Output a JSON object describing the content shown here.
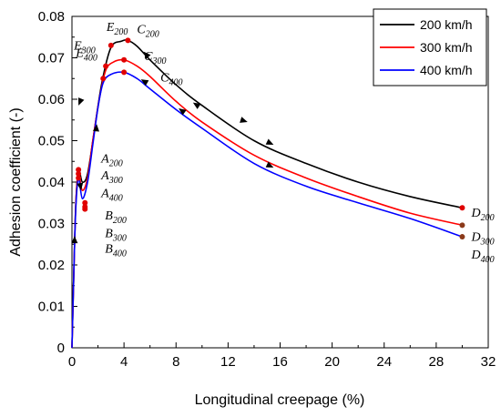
{
  "chart_data": {
    "type": "line",
    "xlabel": "Longitudinal creepage (%)",
    "ylabel": "Adhesion coefficient (-)",
    "xlim": [
      0,
      32
    ],
    "ylim": [
      0,
      0.08
    ],
    "x_ticks": [
      "0",
      "4",
      "8",
      "12",
      "16",
      "20",
      "24",
      "28",
      "32"
    ],
    "y_ticks": [
      "0",
      "0.01",
      "0.02",
      "0.03",
      "0.04",
      "0.05",
      "0.06",
      "0.07",
      "0.08"
    ],
    "legend_position": "top-right",
    "series": [
      {
        "name": "200 km/h",
        "color": "#000000",
        "x": [
          0,
          0.15,
          0.3,
          0.5,
          0.8,
          1.2,
          1.7,
          2.3,
          3.0,
          3.8,
          4.3,
          5.0,
          6.0,
          8.0,
          10.0,
          14.0,
          18.0,
          22.0,
          26.0,
          30.0
        ],
        "y": [
          0,
          0.019,
          0.035,
          0.043,
          0.04,
          0.042,
          0.052,
          0.064,
          0.0725,
          0.074,
          0.0742,
          0.0728,
          0.0695,
          0.0635,
          0.0585,
          0.05,
          0.0445,
          0.04,
          0.0365,
          0.0338
        ]
      },
      {
        "name": "300 km/h",
        "color": "#ff0000",
        "x": [
          0,
          0.15,
          0.3,
          0.5,
          0.8,
          1.2,
          1.6,
          2.1,
          2.6,
          3.2,
          4.0,
          5.0,
          6.0,
          8.0,
          10.0,
          14.0,
          18.0,
          22.0,
          26.0,
          30.0
        ],
        "y": [
          0,
          0.019,
          0.035,
          0.042,
          0.038,
          0.041,
          0.05,
          0.06,
          0.067,
          0.069,
          0.0695,
          0.068,
          0.0655,
          0.0595,
          0.0545,
          0.0465,
          0.041,
          0.0365,
          0.0325,
          0.0296
        ]
      },
      {
        "name": "400 km/h",
        "color": "#0000ff",
        "x": [
          0,
          0.15,
          0.3,
          0.5,
          0.8,
          1.2,
          1.6,
          2.0,
          2.4,
          3.0,
          4.0,
          5.0,
          6.0,
          8.0,
          10.0,
          14.0,
          18.0,
          22.0,
          26.0,
          30.0
        ],
        "y": [
          0,
          0.019,
          0.034,
          0.041,
          0.036,
          0.04,
          0.049,
          0.058,
          0.064,
          0.066,
          0.0665,
          0.065,
          0.0625,
          0.0575,
          0.053,
          0.0445,
          0.039,
          0.035,
          0.0312,
          0.0268
        ]
      }
    ],
    "annotations": [
      {
        "letter": "A",
        "sub": "200",
        "x": 0.5,
        "y": 0.043
      },
      {
        "letter": "A",
        "sub": "300",
        "x": 0.5,
        "y": 0.042
      },
      {
        "letter": "A",
        "sub": "400",
        "x": 0.5,
        "y": 0.041
      },
      {
        "letter": "B",
        "sub": "200",
        "x": 1.0,
        "y": 0.035
      },
      {
        "letter": "B",
        "sub": "300",
        "x": 1.0,
        "y": 0.034
      },
      {
        "letter": "B",
        "sub": "400",
        "x": 1.0,
        "y": 0.0335
      },
      {
        "letter": "C",
        "sub": "200",
        "x": 4.3,
        "y": 0.0742
      },
      {
        "letter": "C",
        "sub": "300",
        "x": 4.0,
        "y": 0.0695
      },
      {
        "letter": "C",
        "sub": "400",
        "x": 4.0,
        "y": 0.0665
      },
      {
        "letter": "D",
        "sub": "200",
        "x": 30.0,
        "y": 0.0338
      },
      {
        "letter": "D",
        "sub": "300",
        "x": 30.0,
        "y": 0.0296
      },
      {
        "letter": "D",
        "sub": "400",
        "x": 30.0,
        "y": 0.0268
      },
      {
        "letter": "E",
        "sub": "200",
        "x": 3.0,
        "y": 0.073
      },
      {
        "letter": "E",
        "sub": "300",
        "x": 2.6,
        "y": 0.068
      },
      {
        "letter": "E",
        "sub": "400",
        "x": 2.4,
        "y": 0.065
      }
    ]
  }
}
